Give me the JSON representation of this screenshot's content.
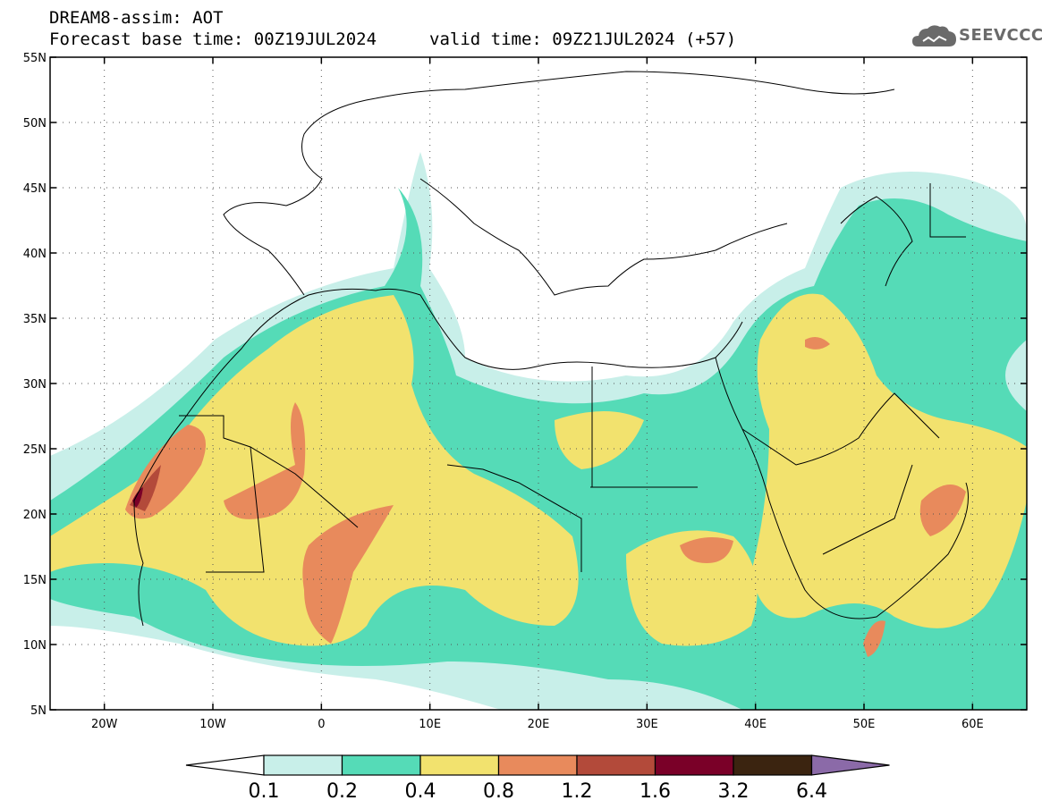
{
  "header": {
    "line1": "DREAM8-assim: AOT",
    "line2": "Forecast base time: 00Z19JUL2024",
    "line3": "valid time: 09Z21JUL2024 (+57)"
  },
  "logo": {
    "text": "SEEVCCC",
    "color": "#6a6a6a"
  },
  "map": {
    "lon_range": [
      -25,
      65
    ],
    "lat_range": [
      5,
      55
    ],
    "lat_ticks": [
      "5N",
      "10N",
      "15N",
      "20N",
      "25N",
      "30N",
      "35N",
      "40N",
      "45N",
      "50N",
      "55N"
    ],
    "lon_ticks": [
      "20W",
      "10W",
      "0",
      "10E",
      "20E",
      "30E",
      "40E",
      "50E",
      "60E"
    ],
    "grid": "dotted"
  },
  "colorbar": {
    "labels": [
      "0.1",
      "0.2",
      "0.4",
      "0.8",
      "1.2",
      "1.6",
      "3.2",
      "6.4"
    ],
    "colors": [
      "#ffffff",
      "#c8efe9",
      "#55dbb7",
      "#f2e26e",
      "#e88a5c",
      "#b34a3a",
      "#7a0028",
      "#3b2410",
      "#8b6aa8"
    ]
  }
}
